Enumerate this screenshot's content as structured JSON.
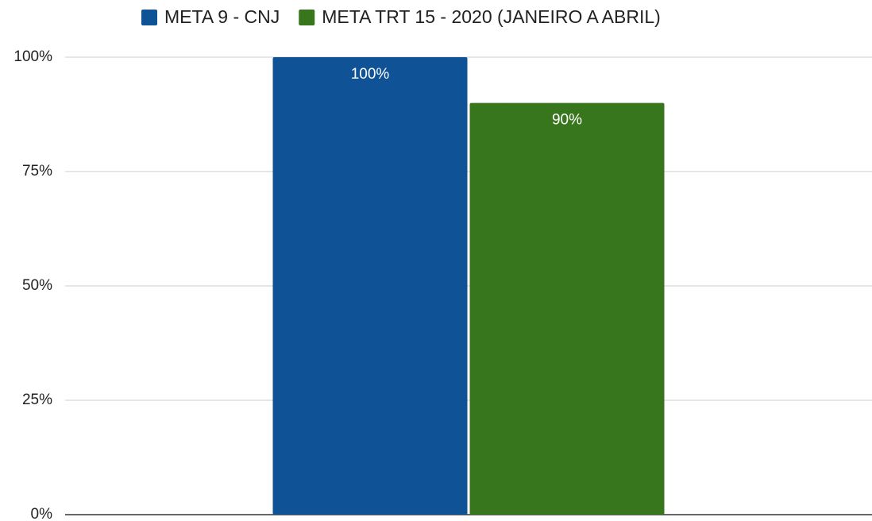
{
  "chart_data": {
    "type": "bar",
    "categories": [
      null
    ],
    "series": [
      {
        "name": "META 9 - CNJ",
        "color": "#0f5396",
        "values": [
          100
        ],
        "value_labels": [
          "100%"
        ]
      },
      {
        "name": "META TRT 15 - 2020 (JANEIRO A ABRIL)",
        "color": "#38761d",
        "values": [
          90
        ],
        "value_labels": [
          "90%"
        ]
      }
    ],
    "ylim": [
      0,
      100
    ],
    "yticks": [
      {
        "value": 0,
        "label": "0%"
      },
      {
        "value": 25,
        "label": "25%"
      },
      {
        "value": 50,
        "label": "50%"
      },
      {
        "value": 75,
        "label": "75%"
      },
      {
        "value": 100,
        "label": "100%"
      }
    ],
    "grid": true,
    "legend": "top"
  }
}
